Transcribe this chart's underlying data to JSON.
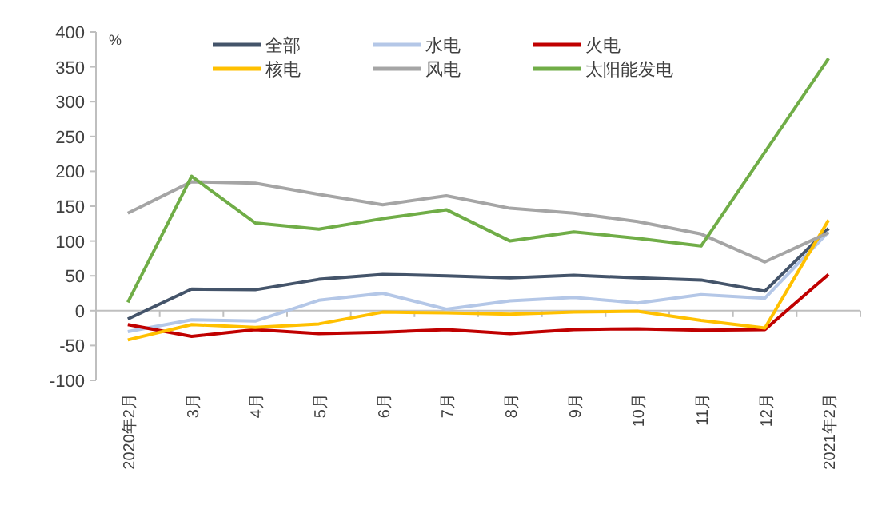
{
  "chart_data": {
    "type": "line",
    "ylabel": "%",
    "categories": [
      "2020年2月",
      "3月",
      "4月",
      "5月",
      "6月",
      "7月",
      "8月",
      "9月",
      "10月",
      "11月",
      "12月",
      "2021年2月"
    ],
    "ylim": [
      -100,
      400
    ],
    "yticks": [
      -100,
      -50,
      0,
      50,
      100,
      150,
      200,
      250,
      300,
      350,
      400
    ],
    "legend": "top",
    "marker": "none",
    "line_style": "solid",
    "series": [
      {
        "name": "全部",
        "color": "#44546a",
        "values": [
          -12,
          31,
          30,
          45,
          52,
          50,
          47,
          51,
          47,
          44,
          28,
          118
        ]
      },
      {
        "name": "水电",
        "color": "#b4c7e7",
        "values": [
          -30,
          -13,
          -15,
          15,
          25,
          2,
          14,
          19,
          11,
          23,
          18,
          113
        ]
      },
      {
        "name": "火电",
        "color": "#c00000",
        "values": [
          -20,
          -37,
          -27,
          -33,
          -31,
          -27,
          -33,
          -27,
          -26,
          -28,
          -27,
          52
        ]
      },
      {
        "name": "核电",
        "color": "#ffc000",
        "values": [
          -42,
          -20,
          -24,
          -19,
          -2,
          -3,
          -5,
          -2,
          -1,
          -14,
          -25,
          130
        ]
      },
      {
        "name": "风电",
        "color": "#a5a5a5",
        "values": [
          140,
          185,
          183,
          167,
          152,
          165,
          147,
          140,
          128,
          110,
          70,
          112
        ]
      },
      {
        "name": "太阳能发电",
        "color": "#70ad47",
        "values": [
          12,
          193,
          126,
          117,
          132,
          145,
          100,
          113,
          104,
          93,
          null,
          362
        ]
      }
    ]
  }
}
